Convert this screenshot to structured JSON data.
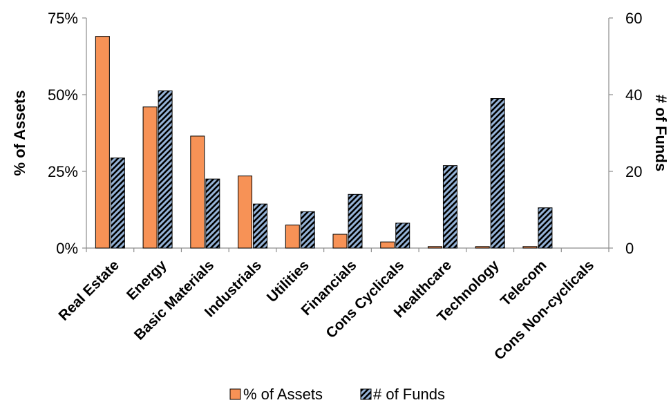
{
  "chart_data": {
    "type": "bar",
    "categories": [
      "Real Estate",
      "Energy",
      "Basic Materials",
      "Industrials",
      "Utilities",
      "Financials",
      "Cons Cyclicals",
      "Healthcare",
      "Technology",
      "Telecom",
      "Cons Non-cyclicals"
    ],
    "series": [
      {
        "name": "% of Assets",
        "axis": "left",
        "color": "#F79256",
        "pattern": "solid",
        "values": [
          69,
          46,
          36.5,
          23.5,
          7.5,
          4.5,
          2,
          0.5,
          0.5,
          0.5,
          0
        ]
      },
      {
        "name": "# of Funds",
        "axis": "right",
        "color": "#95B3D7",
        "pattern": "diagonal-stripes-black",
        "values": [
          23.5,
          41,
          18,
          11.5,
          9.5,
          14,
          6.5,
          21.5,
          39,
          10.5,
          0
        ]
      }
    ],
    "ylabel": "% of Assets",
    "y2label": "# of Funds",
    "ylim": [
      0,
      75
    ],
    "y2lim": [
      0,
      60
    ],
    "yticks": [
      "0%",
      "25%",
      "50%",
      "75%"
    ],
    "y2ticks": [
      "0",
      "20",
      "40",
      "60"
    ],
    "legend_position": "bottom",
    "grid": false
  }
}
